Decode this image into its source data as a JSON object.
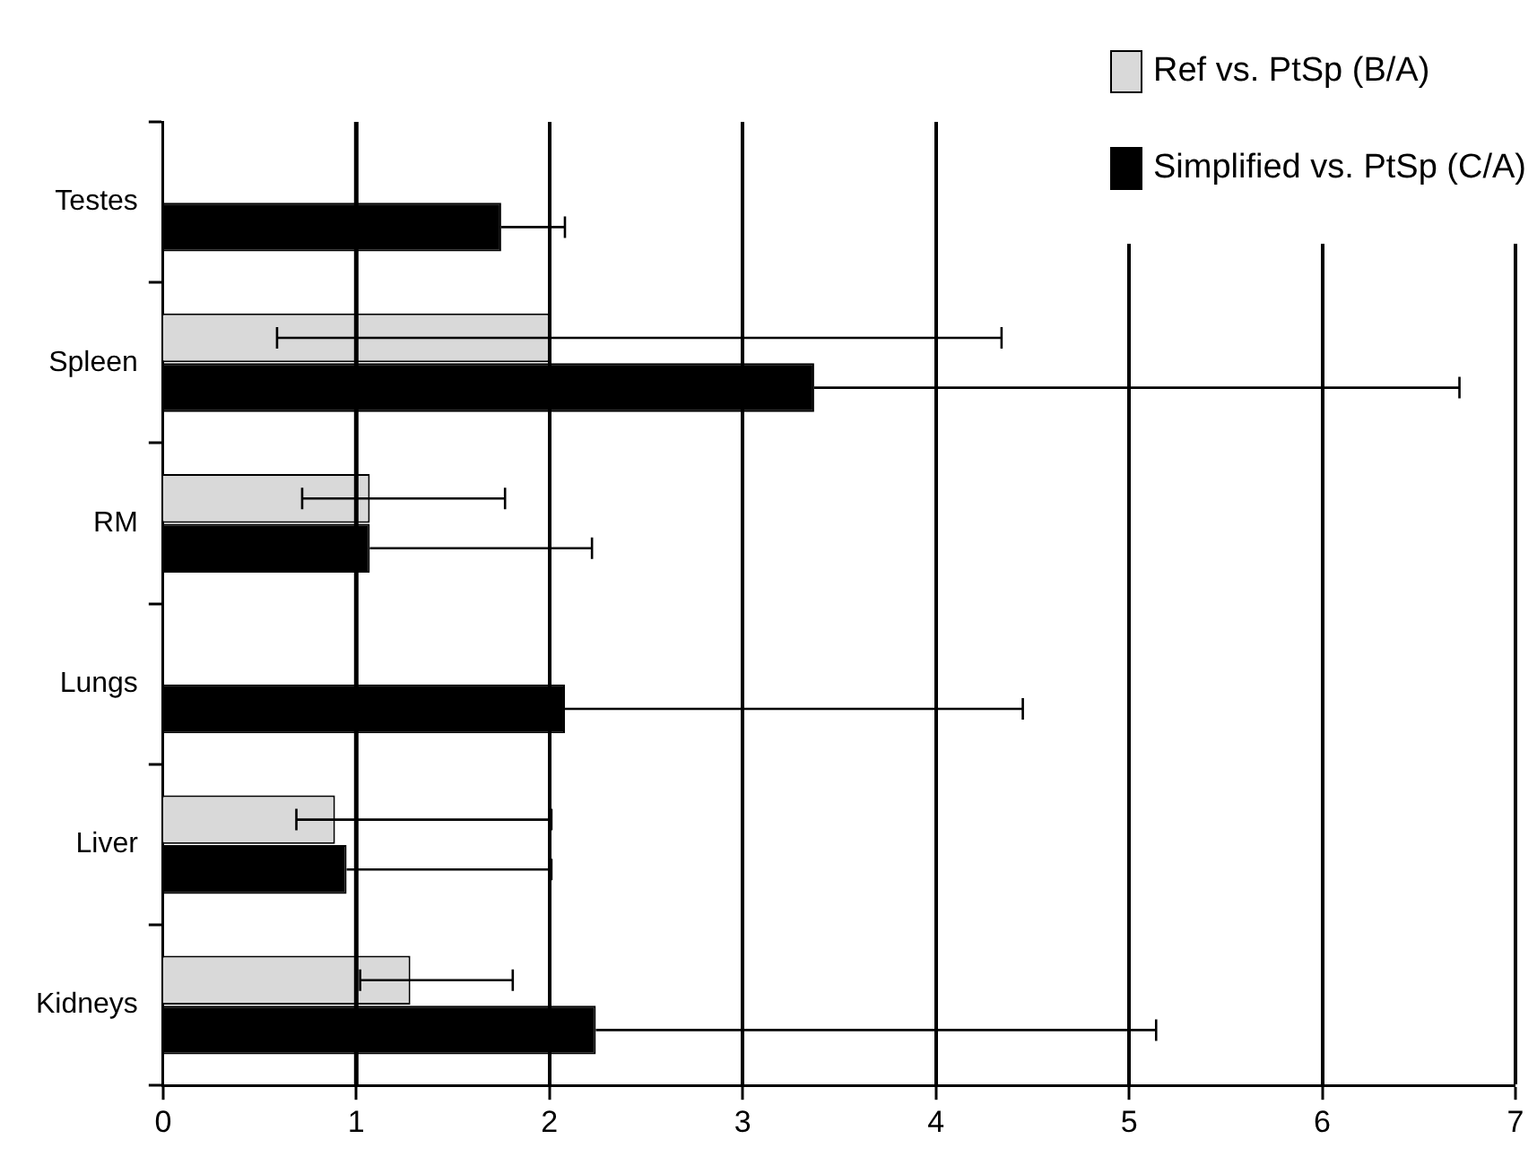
{
  "chart_data": {
    "type": "bar",
    "orientation": "horizontal",
    "categories": [
      "Testes",
      "Spleen",
      "RM",
      "Lungs",
      "Liver",
      "Kidneys"
    ],
    "series": [
      {
        "name": "Ref vs. PtSp (B/A)",
        "color": "#d9d9d9",
        "values": [
          null,
          2.0,
          1.07,
          null,
          0.89,
          1.28
        ],
        "errors": [
          null,
          [
            0.59,
            4.34
          ],
          [
            0.72,
            1.77
          ],
          null,
          [
            0.69,
            2.01
          ],
          [
            1.02,
            1.81
          ]
        ]
      },
      {
        "name": "Simplified vs. PtSp (C/A)",
        "color": "#000000",
        "values": [
          1.75,
          3.37,
          1.07,
          2.08,
          0.95,
          2.24
        ],
        "errors": [
          [
            1.75,
            2.08
          ],
          [
            3.37,
            6.71
          ],
          [
            1.07,
            2.22
          ],
          [
            2.08,
            4.45
          ],
          [
            0.95,
            2.01
          ],
          [
            2.24,
            5.14
          ]
        ]
      }
    ],
    "xlim": [
      0,
      7
    ],
    "xticks": [
      0,
      1,
      2,
      3,
      4,
      5,
      6,
      7
    ],
    "grid": "x",
    "legend": "top right",
    "ref_lines": [
      {
        "axis": "x",
        "value": 1,
        "color": "#000000"
      }
    ]
  }
}
